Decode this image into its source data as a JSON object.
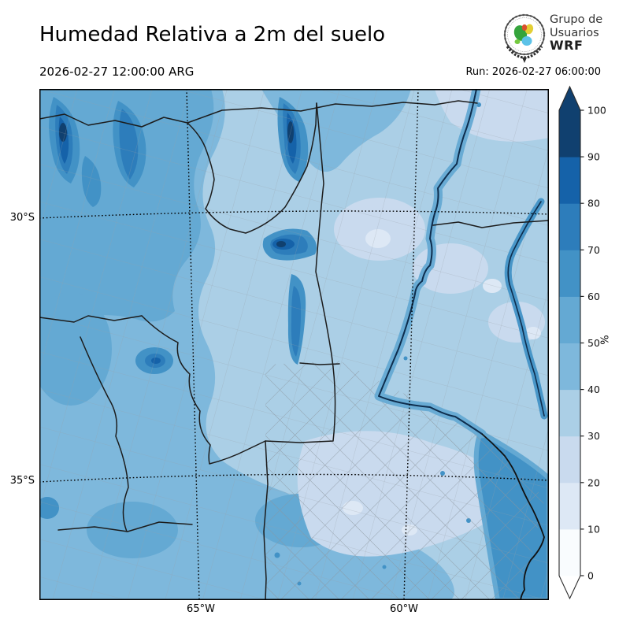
{
  "header": {
    "title": "Humedad Relativa a 2m del suelo",
    "valid_time": "2026-02-27 12:00:00 ARG",
    "run_time": "Run: 2026-02-27 06:00:00",
    "logo": {
      "line1": "Grupo de",
      "line2": "Usuarios",
      "line3": "WRF"
    }
  },
  "map": {
    "lat_labels": [
      "30°S",
      "35°S"
    ],
    "lon_labels": [
      "65°W",
      "60°W"
    ]
  },
  "colorbar": {
    "unit": "%",
    "tick_values": [
      0,
      10,
      20,
      30,
      40,
      50,
      60,
      70,
      80,
      90,
      100
    ],
    "band_colors": [
      "#f9fcfe",
      "#dde8f5",
      "#c9daee",
      "#abcfe6",
      "#7eb8dc",
      "#64a9d3",
      "#4292c6",
      "#2d7dbb",
      "#1562a9",
      "#10406f"
    ],
    "over_arrow_color": "#10406f",
    "under_arrow_color": "#ffffff",
    "outline_color": "#2b2b2b"
  }
}
